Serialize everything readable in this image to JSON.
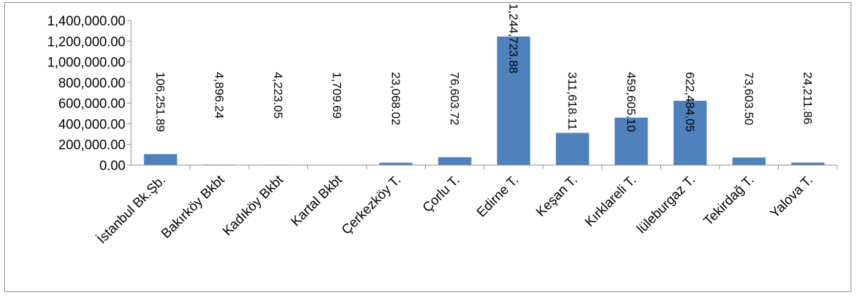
{
  "chart_data": {
    "type": "bar",
    "title": "",
    "xlabel": "",
    "ylabel": "",
    "ylim": [
      0,
      1400000
    ],
    "y_ticks": [
      0,
      200000,
      400000,
      600000,
      800000,
      1000000,
      1200000,
      1400000
    ],
    "y_tick_labels": [
      "0.00",
      "200,000.00",
      "400,000.00",
      "600,000.00",
      "800,000.00",
      "1,000,000.00",
      "1,200,000.00",
      "1,400,000.00"
    ],
    "grid": false,
    "legend": "none",
    "bar_color": "#4f81bd",
    "categories": [
      "İstanbul Bk.Şb.",
      "Bakırköy Bkbt",
      "Kadıköy Bkbt",
      "Kartal Bkbt",
      "Çerkezköy T.",
      "Çorlu T.",
      "Edirne T.",
      "Keşan T.",
      "Kırklareli T.",
      "lüleburgaz T.",
      "Tekirdağ T.",
      "Yalova T."
    ],
    "values": [
      106251.89,
      4896.24,
      4223.05,
      1709.69,
      23068.02,
      76603.72,
      1244723.88,
      311618.11,
      459605.1,
      622484.05,
      73603.5,
      24211.86
    ],
    "data_labels": [
      "106,251.89",
      "4,896.24",
      "4,223.05",
      "1,709.69",
      "23,068.02",
      "76,603.72",
      "1,244,723.88",
      "311,618.11",
      "459,605.10",
      "622,484.05",
      "73,603.50",
      "24,211.86"
    ]
  }
}
